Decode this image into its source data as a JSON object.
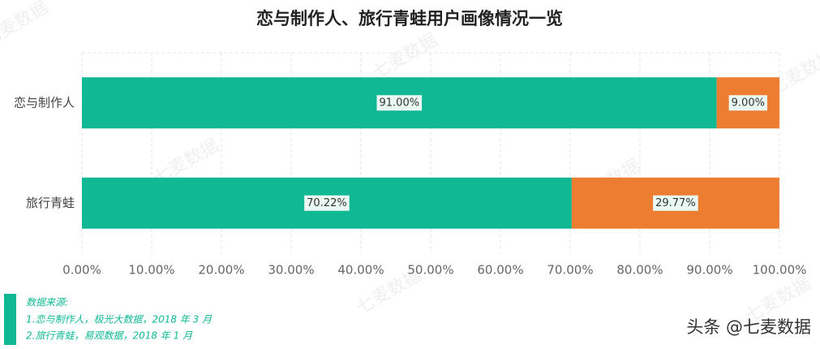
{
  "chart_data": {
    "type": "stacked-bar-horizontal",
    "title": "恋与制作人、旅行青蛙用户画像情况一览",
    "categories": [
      "恋与制作人",
      "旅行青蛙"
    ],
    "series": [
      {
        "color": "#10b994",
        "values": [
          91.0,
          70.22
        ],
        "value_labels": [
          "91.00%",
          "70.22%"
        ]
      },
      {
        "color": "#ed7d31",
        "values": [
          9.0,
          29.77
        ],
        "value_labels": [
          "9.00%",
          "29.77%"
        ]
      }
    ],
    "xlim": [
      0,
      100
    ],
    "xticks": [
      {
        "value": 0,
        "label": "0.00%"
      },
      {
        "value": 10,
        "label": "10.00%"
      },
      {
        "value": 20,
        "label": "20.00%"
      },
      {
        "value": 30,
        "label": "30.00%"
      },
      {
        "value": 40,
        "label": "40.00%"
      },
      {
        "value": 50,
        "label": "50.00%"
      },
      {
        "value": 60,
        "label": "60.00%"
      },
      {
        "value": 70,
        "label": "70.00%"
      },
      {
        "value": 80,
        "label": "80.00%"
      },
      {
        "value": 90,
        "label": "90.00%"
      },
      {
        "value": 100,
        "label": "100.00%"
      }
    ],
    "grid": true,
    "notes": [
      "数据来源:",
      "1.恋与制作人，极光大数据，2018 年 3 月",
      "2.旅行青蛙，易观数据，2018 年 1 月"
    ],
    "watermark": "七麦数据",
    "footer": "头条 @七麦数据"
  }
}
